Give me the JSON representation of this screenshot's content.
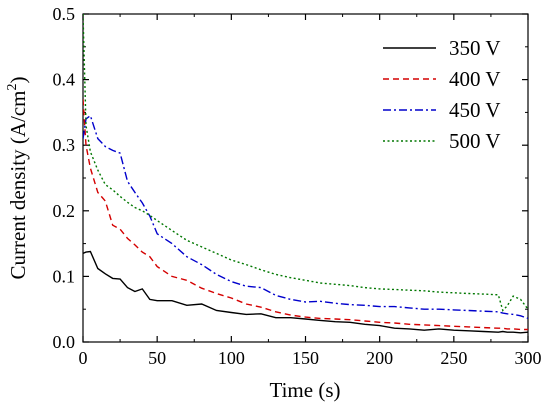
{
  "chart_data": {
    "type": "line",
    "title": "",
    "xlabel": "Time (s)",
    "ylabel": "Current density (A/cm",
    "ylabel_sup": "2",
    "ylabel_suffix": ")",
    "xlim": [
      0,
      300
    ],
    "ylim": [
      0.0,
      0.5
    ],
    "xticks": [
      0,
      50,
      100,
      150,
      200,
      250,
      300
    ],
    "yticks": [
      0.0,
      0.1,
      0.2,
      0.3,
      0.4,
      0.5
    ],
    "xtick_labels": [
      "0",
      "50",
      "100",
      "150",
      "200",
      "250",
      "300"
    ],
    "ytick_labels": [
      "0.0",
      "0.1",
      "0.2",
      "0.3",
      "0.4",
      "0.5"
    ],
    "grid": false,
    "legend_position": "top-right",
    "x": [
      0,
      2,
      5,
      10,
      15,
      20,
      25,
      30,
      35,
      40,
      45,
      50,
      60,
      70,
      80,
      90,
      100,
      110,
      120,
      130,
      140,
      150,
      160,
      170,
      180,
      190,
      200,
      210,
      220,
      230,
      240,
      250,
      260,
      270,
      280,
      283,
      286,
      290,
      295,
      300
    ],
    "series": [
      {
        "name": "350 V",
        "color": "#000000",
        "dash": "solid",
        "values": [
          0.135,
          0.137,
          0.138,
          0.112,
          0.104,
          0.097,
          0.096,
          0.083,
          0.077,
          0.081,
          0.065,
          0.063,
          0.063,
          0.056,
          0.058,
          0.048,
          0.045,
          0.042,
          0.043,
          0.037,
          0.037,
          0.035,
          0.033,
          0.031,
          0.03,
          0.027,
          0.025,
          0.021,
          0.02,
          0.018,
          0.02,
          0.018,
          0.017,
          0.016,
          0.015,
          0.016,
          0.015,
          0.015,
          0.014,
          0.015
        ]
      },
      {
        "name": "400 V",
        "color": "#d40000",
        "dash": "dashed",
        "values": [
          0.37,
          0.3,
          0.265,
          0.228,
          0.215,
          0.178,
          0.172,
          0.158,
          0.148,
          0.137,
          0.13,
          0.115,
          0.1,
          0.094,
          0.082,
          0.074,
          0.067,
          0.058,
          0.053,
          0.046,
          0.041,
          0.038,
          0.036,
          0.035,
          0.034,
          0.032,
          0.03,
          0.029,
          0.027,
          0.026,
          0.025,
          0.024,
          0.023,
          0.022,
          0.021,
          0.021,
          0.02,
          0.02,
          0.019,
          0.019
        ]
      },
      {
        "name": "450 V",
        "color": "#0000cc",
        "dash": "dashdot",
        "values": [
          0.31,
          0.34,
          0.345,
          0.31,
          0.298,
          0.292,
          0.288,
          0.245,
          0.228,
          0.212,
          0.192,
          0.165,
          0.15,
          0.13,
          0.118,
          0.103,
          0.092,
          0.085,
          0.083,
          0.071,
          0.065,
          0.061,
          0.062,
          0.059,
          0.057,
          0.056,
          0.054,
          0.054,
          0.052,
          0.05,
          0.05,
          0.049,
          0.048,
          0.047,
          0.046,
          0.044,
          0.043,
          0.042,
          0.04,
          0.036
        ]
      },
      {
        "name": "500 V",
        "color": "#007700",
        "dash": "dotted",
        "values": [
          0.5,
          0.33,
          0.29,
          0.262,
          0.24,
          0.232,
          0.222,
          0.213,
          0.205,
          0.2,
          0.193,
          0.185,
          0.17,
          0.155,
          0.145,
          0.135,
          0.125,
          0.118,
          0.11,
          0.103,
          0.098,
          0.094,
          0.09,
          0.088,
          0.086,
          0.083,
          0.081,
          0.08,
          0.079,
          0.078,
          0.076,
          0.075,
          0.074,
          0.073,
          0.072,
          0.048,
          0.055,
          0.07,
          0.065,
          0.05
        ]
      }
    ]
  }
}
